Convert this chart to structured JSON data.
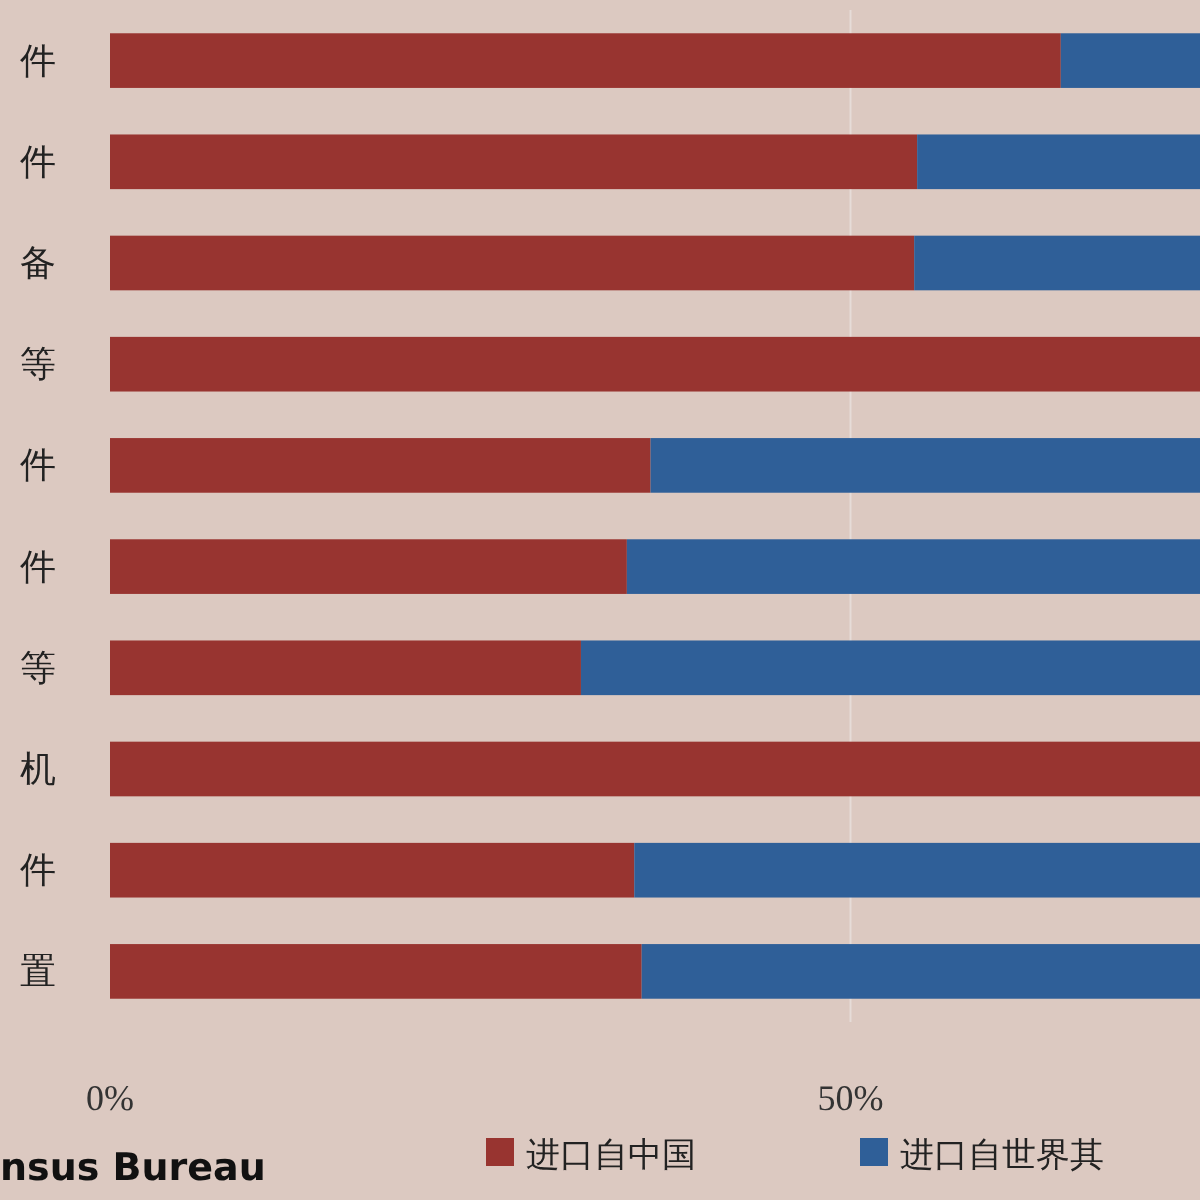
{
  "chart_data": {
    "type": "bar",
    "orientation": "horizontal",
    "stacked": true,
    "categories": [
      "件",
      "件",
      "备",
      "等",
      "件",
      "件",
      "等",
      "机",
      "件",
      "置"
    ],
    "series": [
      {
        "name": "进口自中国",
        "color": "#983430",
        "values": [
          64.2,
          54.5,
          54.3,
          73.6,
          36.5,
          34.9,
          31.8,
          73.6,
          35.4,
          35.9
        ]
      },
      {
        "name": "进口自世界其",
        "color": "#2f5f98",
        "values": [
          9.4,
          19.1,
          19.3,
          null,
          37.1,
          38.7,
          41.8,
          null,
          38.2,
          37.7
        ]
      }
    ],
    "xlim": [
      0,
      73.6
    ],
    "xticks": [
      {
        "value": 0,
        "label": "0%"
      },
      {
        "value": 50,
        "label": "50%"
      }
    ],
    "grid": "x",
    "legend": "bottom",
    "annotations": [
      "nsus Bureau"
    ]
  }
}
